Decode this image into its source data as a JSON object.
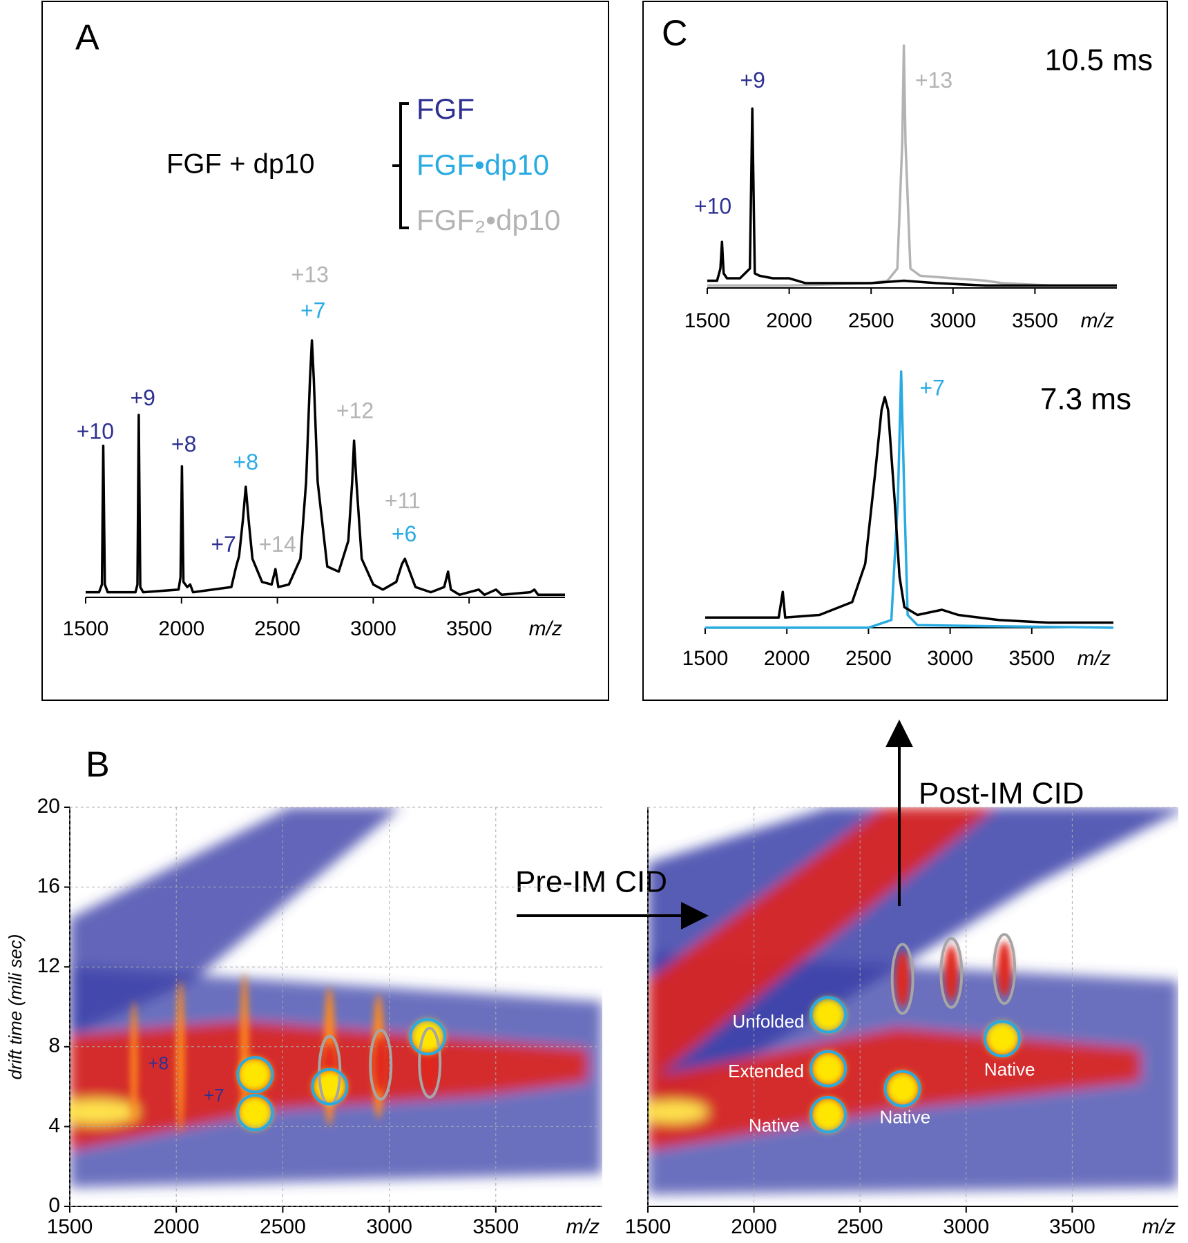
{
  "chart_data": [
    {
      "type": "line",
      "panel": "A",
      "legend_title": "FGF + dp10",
      "legend": [
        {
          "name": "FGF",
          "color": "#2e3192"
        },
        {
          "name": "FGF•dp10",
          "color": "#29abe2"
        },
        {
          "name": "FGF₂•dp10",
          "color": "#b3b3b3"
        }
      ],
      "xlabel": "m/z",
      "xlim": [
        1500,
        4000
      ],
      "xticks": [
        1500,
        2000,
        2500,
        3000,
        3500
      ],
      "ylim": [
        0,
        100
      ],
      "series": [
        {
          "color": "#000000",
          "x": [
            1500,
            1570,
            1585,
            1592,
            1600,
            1615,
            1760,
            1770,
            1777,
            1785,
            1800,
            1985,
            1995,
            2002,
            2010,
            2030,
            2045,
            2060,
            2260,
            2285,
            2300,
            2320,
            2335,
            2350,
            2370,
            2420,
            2470,
            2490,
            2505,
            2560,
            2620,
            2650,
            2670,
            2680,
            2690,
            2710,
            2760,
            2820,
            2870,
            2890,
            2900,
            2912,
            2940,
            3000,
            3050,
            3120,
            3150,
            3165,
            3180,
            3220,
            3300,
            3370,
            3390,
            3405,
            3450,
            3550,
            3580,
            3640,
            3670,
            3820,
            3840,
            3860,
            4000
          ],
          "values": [
            2,
            2,
            5,
            59,
            5,
            2,
            2,
            5,
            71,
            4,
            2,
            3,
            8,
            51,
            6,
            4,
            5,
            2,
            4,
            12,
            16,
            30,
            43,
            30,
            15,
            6,
            5,
            11,
            4,
            5,
            15,
            45,
            85,
            100,
            85,
            45,
            12,
            10,
            22,
            45,
            61,
            45,
            15,
            5,
            3,
            6,
            13,
            15,
            12,
            4,
            2,
            4,
            10,
            3,
            1,
            3,
            1,
            3,
            1,
            2,
            3,
            1,
            1
          ]
        }
      ],
      "annotations": [
        {
          "text": "+10",
          "x": 1550,
          "y": 64,
          "color": "#2e3192"
        },
        {
          "text": "+9",
          "x": 1798,
          "y": 77,
          "color": "#2e3192"
        },
        {
          "text": "+8",
          "x": 2012,
          "y": 59,
          "color": "#2e3192"
        },
        {
          "text": "+7",
          "x": 2219,
          "y": 20,
          "color": "#2e3192"
        },
        {
          "text": "+8",
          "x": 2335,
          "y": 52,
          "color": "#29abe2"
        },
        {
          "text": "+14",
          "x": 2500,
          "y": 20,
          "color": "#b3b3b3"
        },
        {
          "text": "+13",
          "x": 2670,
          "y": 125,
          "color": "#b3b3b3"
        },
        {
          "text": "+7",
          "x": 2686,
          "y": 111,
          "color": "#29abe2"
        },
        {
          "text": "+12",
          "x": 2905,
          "y": 72,
          "color": "#b3b3b3"
        },
        {
          "text": "+11",
          "x": 3153,
          "y": 37,
          "color": "#b3b3b3"
        },
        {
          "text": "+6",
          "x": 3161,
          "y": 24,
          "color": "#29abe2"
        }
      ]
    },
    {
      "type": "line",
      "panel": "C",
      "title": "10.5 ms",
      "xlabel": "m/z",
      "xlim": [
        1500,
        4000
      ],
      "xticks": [
        1500,
        2000,
        2500,
        3000,
        3500
      ],
      "ylim": [
        0,
        100
      ],
      "series": [
        {
          "color": "#b3b3b3",
          "x": [
            1500,
            2000,
            2500,
            2600,
            2660,
            2690,
            2700,
            2710,
            2740,
            2800,
            3000,
            3200,
            3300,
            3600,
            4000
          ],
          "values": [
            1,
            1,
            2,
            3,
            8,
            60,
            100,
            60,
            8,
            5,
            4,
            3,
            2,
            1,
            1
          ]
        },
        {
          "color": "#000000",
          "x": [
            1500,
            1560,
            1580,
            1590,
            1600,
            1620,
            1700,
            1760,
            1775,
            1790,
            1820,
            1900,
            2000,
            2100,
            2300,
            2500,
            2700,
            2900,
            3200,
            3600,
            4000
          ],
          "values": [
            3,
            3,
            8,
            19,
            6,
            4,
            4,
            8,
            74,
            6,
            5,
            4,
            4,
            2,
            2,
            2,
            3,
            2,
            1,
            1,
            1
          ]
        }
      ],
      "annotations": [
        {
          "text": "+10",
          "x": 1534,
          "y": 33,
          "color": "#2e3192"
        },
        {
          "text": "+9",
          "x": 1777,
          "y": 85,
          "color": "#2e3192"
        },
        {
          "text": "+13",
          "x": 2883,
          "y": 85,
          "color": "#b3b3b3"
        }
      ]
    },
    {
      "type": "line",
      "title": "7.3 ms",
      "xlabel": "m/z",
      "xlim": [
        1500,
        4000
      ],
      "xticks": [
        1500,
        2000,
        2500,
        3000,
        3500
      ],
      "ylim": [
        0,
        100
      ],
      "series": [
        {
          "color": "#29abe2",
          "x": [
            1500,
            2500,
            2640,
            2680,
            2700,
            2720,
            2740,
            2800,
            4000
          ],
          "values": [
            0,
            0,
            3,
            50,
            100,
            50,
            5,
            1,
            0
          ]
        },
        {
          "color": "#000000",
          "x": [
            1500,
            1700,
            1950,
            1975,
            1990,
            2200,
            2400,
            2480,
            2540,
            2580,
            2600,
            2620,
            2660,
            2690,
            2720,
            2800,
            2950,
            3050,
            3300,
            3600,
            4000
          ],
          "values": [
            4,
            4,
            4,
            14,
            4,
            5,
            10,
            25,
            60,
            85,
            90,
            85,
            50,
            20,
            8,
            5,
            7,
            5,
            3,
            2,
            2
          ]
        }
      ],
      "annotations": [
        {
          "text": "+7",
          "x": 2890,
          "y": 93,
          "color": "#29abe2"
        }
      ]
    },
    {
      "type": "heatmap",
      "panel": "B",
      "xlabel": "m/z",
      "ylabel": "drift time (mili sec)",
      "xlim": [
        1500,
        4000
      ],
      "xticks": [
        1500,
        2000,
        2500,
        3000,
        3500
      ],
      "ylim": [
        0,
        20
      ],
      "yticks": [
        0,
        4,
        8,
        12,
        16,
        20
      ],
      "grid": true,
      "markers": [
        {
          "shape": "circle",
          "x": 2370,
          "y": 6.6,
          "color": "#29abe2"
        },
        {
          "shape": "circle",
          "x": 2370,
          "y": 4.7,
          "color": "#29abe2"
        },
        {
          "shape": "ellipse",
          "x": 2720,
          "y": 6.8,
          "color": "#a6a6a6"
        },
        {
          "shape": "circle",
          "x": 2720,
          "y": 6.0,
          "color": "#29abe2"
        },
        {
          "shape": "ellipse",
          "x": 2960,
          "y": 7.1,
          "color": "#a6a6a6"
        },
        {
          "shape": "ellipse",
          "x": 3190,
          "y": 7.2,
          "color": "#a6a6a6"
        },
        {
          "shape": "circle",
          "x": 3180,
          "y": 8.5,
          "color": "#29abe2"
        }
      ],
      "labels": [
        {
          "text": "+8",
          "x": 1916,
          "y": 7.1,
          "color": "#2e3192"
        },
        {
          "text": "+7",
          "x": 2177,
          "y": 5.5,
          "color": "#2e3192"
        }
      ]
    },
    {
      "type": "heatmap",
      "xlabel": "m/z",
      "xlim": [
        1500,
        4000
      ],
      "xticks": [
        1500,
        2000,
        2500,
        3000,
        3500
      ],
      "ylim": [
        0,
        20
      ],
      "grid": true,
      "markers": [
        {
          "shape": "circle",
          "x": 2350,
          "y": 9.6,
          "color": "#29abe2"
        },
        {
          "shape": "circle",
          "x": 2350,
          "y": 6.9,
          "color": "#29abe2"
        },
        {
          "shape": "circle",
          "x": 2350,
          "y": 4.6,
          "color": "#29abe2"
        },
        {
          "shape": "circle",
          "x": 2700,
          "y": 5.9,
          "color": "#29abe2"
        },
        {
          "shape": "circle",
          "x": 3170,
          "y": 8.4,
          "color": "#29abe2"
        },
        {
          "shape": "ellipse",
          "x": 2700,
          "y": 11.4,
          "color": "#a6a6a6"
        },
        {
          "shape": "ellipse",
          "x": 2930,
          "y": 11.7,
          "color": "#a6a6a6"
        },
        {
          "shape": "ellipse",
          "x": 3180,
          "y": 11.9,
          "color": "#a6a6a6"
        }
      ],
      "labels": [
        {
          "text": "Unfolded",
          "x": 2068,
          "y": 9.2,
          "color": "#ffffff"
        },
        {
          "text": "Extended",
          "x": 2057,
          "y": 6.7,
          "color": "#ffffff"
        },
        {
          "text": "Native",
          "x": 2095,
          "y": 4.0,
          "color": "#ffffff"
        },
        {
          "text": "Native",
          "x": 2712,
          "y": 4.4,
          "color": "#ffffff"
        },
        {
          "text": "Native",
          "x": 3205,
          "y": 6.8,
          "color": "#ffffff"
        }
      ]
    }
  ],
  "figure_annotations": [
    "Pre-IM CID",
    "Post-IM CID"
  ]
}
